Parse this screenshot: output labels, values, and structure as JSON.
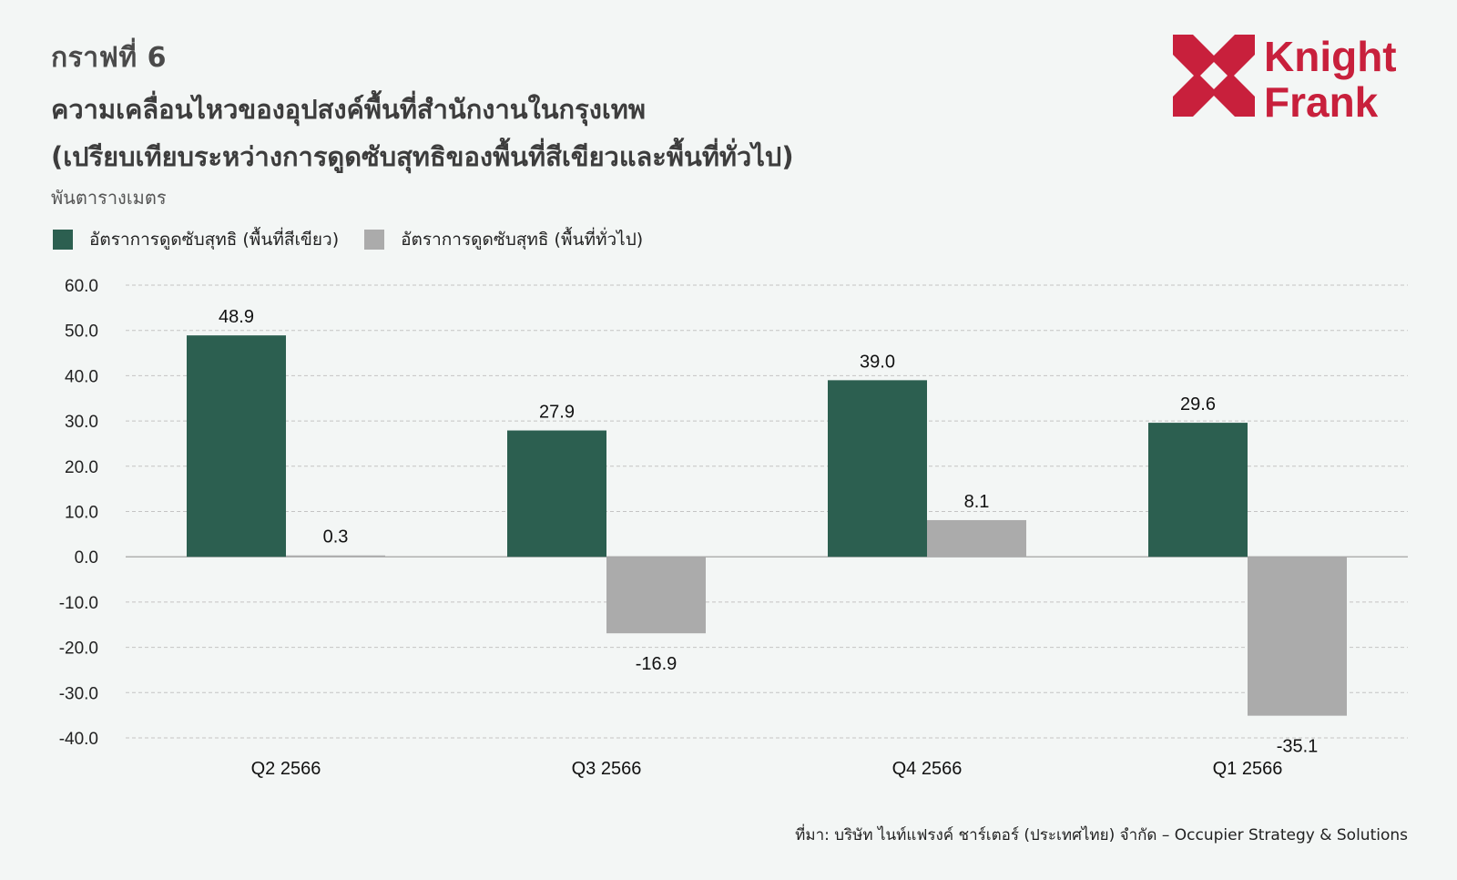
{
  "header": {
    "figure_label": "กราฟที่ 6",
    "title_line1": "ความเคลื่อนไหวของอุปสงค์พื้นที่สำนักงานในกรุงเทพ",
    "title_line2": "(เปรียบเทียบระหว่างการดูดซับสุทธิของพื้นที่สีเขียวและพื้นที่ทั่วไป)",
    "unit": "พันตารางเมตร"
  },
  "logo": {
    "line1": "Knight",
    "line2": "Frank",
    "color": "#c8203c"
  },
  "source": "ที่มา: บริษัท ไนท์แฟรงค์ ชาร์เตอร์ (ประเทศไทย) จำกัด – Occupier Strategy & Solutions",
  "chart_data": {
    "type": "bar",
    "categories": [
      "Q2 2566",
      "Q3 2566",
      "Q4 2566",
      "Q1 2566"
    ],
    "series": [
      {
        "name": "อัตราการดูดซับสุทธิ (พื้นที่สีเขียว)",
        "values": [
          48.9,
          27.9,
          39.0,
          29.6
        ],
        "color": "#2c5f50"
      },
      {
        "name": "อัตราการดูดซับสุทธิ (พื้นที่ทั่วไป)",
        "values": [
          0.3,
          -16.9,
          8.1,
          -35.1
        ],
        "color": "#ababab"
      }
    ],
    "data_labels": [
      [
        "48.9",
        "27.9",
        "39.0",
        "29.6"
      ],
      [
        "0.3",
        "-16.9",
        "8.1",
        "-35.1"
      ]
    ],
    "yticks": [
      "60.0",
      "50.0",
      "40.0",
      "30.0",
      "20.0",
      "10.0",
      "0.0",
      "-10.0",
      "-20.0",
      "-30.0",
      "-40.0"
    ],
    "ylim": [
      -40,
      60
    ],
    "grid": true,
    "legend_position": "top-left"
  }
}
